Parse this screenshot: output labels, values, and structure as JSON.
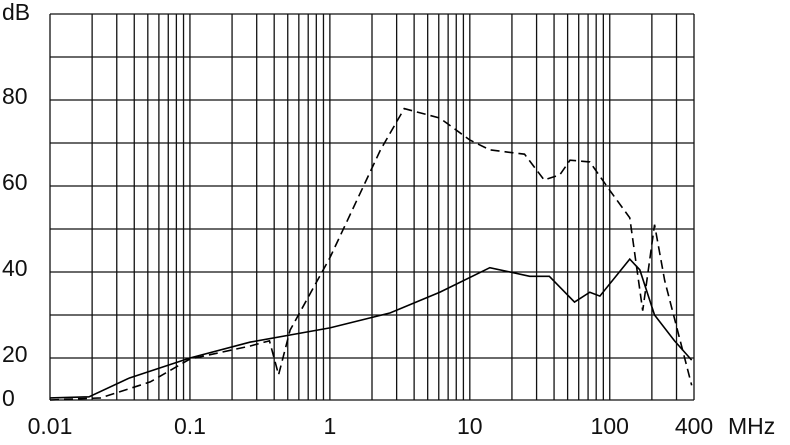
{
  "chart_data": {
    "type": "line",
    "xlabel": "MHz",
    "ylabel": "dB",
    "xscale": "log",
    "xlim": [
      0.01,
      400
    ],
    "ylim": [
      0,
      100
    ],
    "xticks": [
      0.01,
      0.1,
      1,
      10,
      100,
      400
    ],
    "xminor": [
      0.02,
      0.03,
      0.04,
      0.05,
      0.06,
      0.07,
      0.08,
      0.09,
      0.2,
      0.3,
      0.4,
      0.5,
      0.6,
      0.7,
      0.8,
      0.9,
      2,
      3,
      4,
      5,
      6,
      7,
      8,
      9,
      20,
      30,
      40,
      50,
      60,
      70,
      80,
      90,
      200,
      300
    ],
    "yticks": [
      0,
      20,
      40,
      60,
      80
    ],
    "yminor": [
      30,
      50,
      70,
      90,
      100
    ],
    "grid": true,
    "series": [
      {
        "color": "#000000",
        "dash": false,
        "x": [
          0.01,
          0.019,
          0.037,
          0.1,
          0.27,
          1,
          2.7,
          6.1,
          13.9,
          26.8,
          37,
          56,
          72,
          85,
          139,
          164,
          209,
          290,
          385
        ],
        "values": [
          1,
          1.5,
          10.5,
          20,
          23.7,
          27,
          30.5,
          35.3,
          41,
          39,
          39,
          33,
          35.3,
          34.4,
          43,
          40.5,
          30,
          24,
          19
        ]
      },
      {
        "color": "#000000",
        "dash": true,
        "x": [
          0.01,
          0.023,
          0.052,
          0.1,
          0.27,
          0.37,
          0.43,
          0.52,
          1,
          2.3,
          3.4,
          6.1,
          10,
          13.9,
          24.6,
          34,
          44,
          52,
          72,
          100,
          139,
          172,
          209,
          247,
          385
        ],
        "values": [
          0,
          1,
          8.6,
          19.5,
          22.8,
          24,
          12,
          26.5,
          43.3,
          68.4,
          78,
          75.8,
          70.7,
          68.4,
          67.4,
          61.4,
          62.6,
          66,
          65.6,
          59,
          52.6,
          31,
          51,
          38,
          7
        ]
      }
    ]
  }
}
